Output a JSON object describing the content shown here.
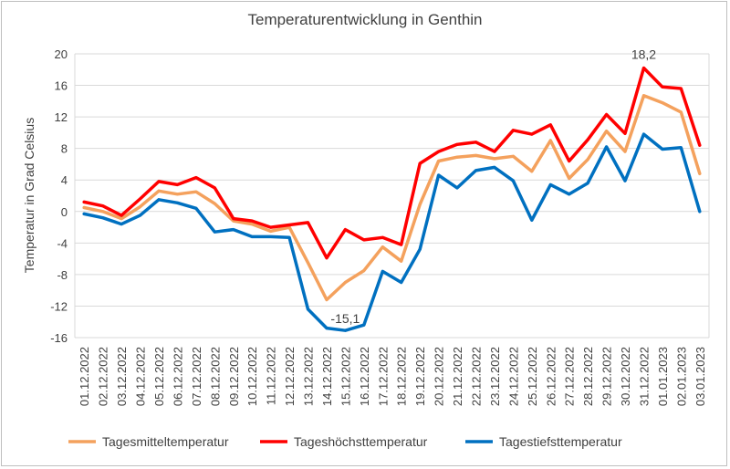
{
  "chart_data": {
    "type": "line",
    "title": "Temperaturentwicklung in Genthin",
    "xlabel": "",
    "ylabel": "Temperatur in Grad Celsius",
    "ylim": [
      -16,
      20
    ],
    "yticks": [
      -16,
      -12,
      -8,
      -4,
      0,
      4,
      8,
      12,
      16,
      20
    ],
    "grid": true,
    "legend_position": "bottom",
    "categories": [
      "01.12.2022",
      "02.12.2022",
      "03.12.2022",
      "04.12.2022",
      "05.12.2022",
      "06.12.2022",
      "07.12.2022",
      "08.12.2022",
      "09.12.2022",
      "10.12.2022",
      "11.12.2022",
      "12.12.2022",
      "13.12.2022",
      "14.12.2022",
      "15.12.2022",
      "16.12.2022",
      "17.12.2022",
      "18.12.2022",
      "19.12.2022",
      "20.12.2022",
      "21.12.2022",
      "22.12.2022",
      "23.12.2022",
      "24.12.2022",
      "25.12.2022",
      "26.12.2022",
      "27.12.2022",
      "28.12.2022",
      "29.12.2022",
      "30.12.2022",
      "31.12.2022",
      "01.01.2023",
      "02.01.2023",
      "03.01.2023"
    ],
    "series": [
      {
        "name": "Tagesmitteltemperatur",
        "color": "#f4a15d",
        "values": [
          0.5,
          0.0,
          -0.9,
          0.6,
          2.6,
          2.2,
          2.5,
          1.0,
          -1.2,
          -1.6,
          -2.5,
          -2.0,
          -6.5,
          -11.2,
          -9.0,
          -7.5,
          -4.5,
          -6.3,
          0.9,
          6.4,
          6.9,
          7.1,
          6.7,
          7.0,
          5.1,
          9.0,
          4.2,
          6.6,
          10.2,
          7.6,
          14.7,
          13.8,
          12.6,
          4.8
        ]
      },
      {
        "name": "Tageshöchsttemperatur",
        "color": "#ff0000",
        "values": [
          1.2,
          0.7,
          -0.5,
          1.6,
          3.8,
          3.4,
          4.3,
          3.0,
          -0.9,
          -1.2,
          -2.0,
          -1.7,
          -1.4,
          -5.9,
          -2.3,
          -3.6,
          -3.3,
          -4.2,
          6.1,
          7.6,
          8.5,
          8.8,
          7.6,
          10.3,
          9.8,
          11.0,
          6.4,
          9.1,
          12.3,
          9.9,
          18.2,
          15.8,
          15.6,
          8.4
        ]
      },
      {
        "name": "Tagestiefsttemperatur",
        "color": "#0070c0",
        "values": [
          -0.3,
          -0.8,
          -1.6,
          -0.5,
          1.5,
          1.1,
          0.4,
          -2.6,
          -2.3,
          -3.2,
          -3.2,
          -3.3,
          -12.4,
          -14.8,
          -15.1,
          -14.4,
          -7.6,
          -9.0,
          -4.8,
          4.6,
          3.0,
          5.2,
          5.6,
          3.9,
          -1.1,
          3.4,
          2.2,
          3.6,
          8.2,
          3.9,
          9.8,
          7.9,
          8.1,
          0.0
        ]
      }
    ],
    "annotations": [
      {
        "text": "18,2",
        "series": 1,
        "index": 30
      },
      {
        "text": "-15,1",
        "series": 2,
        "index": 14
      }
    ]
  }
}
